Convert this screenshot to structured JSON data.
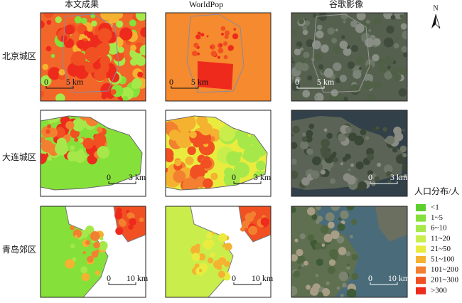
{
  "columns": [
    "本文成果",
    "WorldPop",
    "谷歌影像"
  ],
  "rows": [
    {
      "label": "北京城区",
      "scale": "5 km"
    },
    {
      "label": "大连城区",
      "scale": "3 km"
    },
    {
      "label": "青岛郊区",
      "scale": "10 km"
    }
  ],
  "scale_start": "0",
  "north": "N",
  "legend": {
    "title": "人口分布/人",
    "items": [
      {
        "label": "<1",
        "color": "#5ccf2e"
      },
      {
        "label": "1~5",
        "color": "#86e03a"
      },
      {
        "label": "6~10",
        "color": "#a6e84a"
      },
      {
        "label": "11~20",
        "color": "#c9ee4c"
      },
      {
        "label": "21~50",
        "color": "#e9ec3e"
      },
      {
        "label": "51~100",
        "color": "#f5b230"
      },
      {
        "label": "101~200",
        "color": "#f38030"
      },
      {
        "label": "201~300",
        "color": "#f05022"
      },
      {
        "label": ">300",
        "color": "#ee2a1c"
      }
    ]
  }
}
